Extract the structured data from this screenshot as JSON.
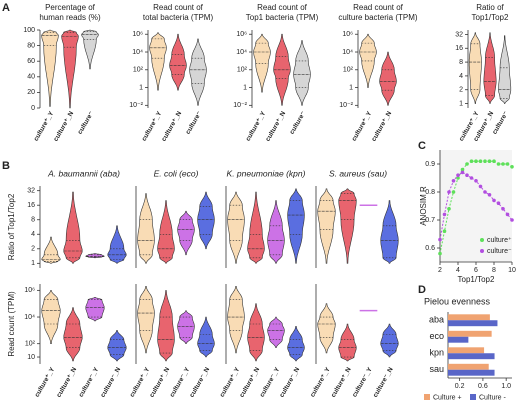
{
  "chart_data": [
    {
      "type": "violin",
      "panel": "A",
      "title": [
        "Percentage of",
        "human reads (%)"
      ],
      "categories": [
        "culture⁺_Y",
        "culture⁺_N",
        "culture⁻"
      ],
      "colors": [
        "#f9dcb5",
        "#e8646e",
        "#d6d6d6"
      ],
      "log": false,
      "ylim": [
        0,
        100
      ],
      "yticks": [
        0,
        20,
        40,
        60,
        80,
        100
      ],
      "min": [
        2,
        0,
        50
      ],
      "q1": [
        80,
        78,
        88
      ],
      "median": [
        93,
        92,
        94
      ],
      "q3": [
        97,
        97,
        98
      ],
      "max": [
        100,
        100,
        100
      ]
    },
    {
      "type": "violin",
      "title": [
        "Read count of",
        "total bacteria (TPM)"
      ],
      "categories": [
        "culture⁺_Y",
        "culture⁺_N",
        "culture⁻"
      ],
      "colors": [
        "#f9dcb5",
        "#e8646e",
        "#d6d6d6"
      ],
      "log": true,
      "ylim": [
        0.005,
        3000000
      ],
      "yticks": [
        {
          "value": 0.01,
          "label": "10⁻²"
        },
        1,
        {
          "value": 100,
          "label": "10²"
        },
        {
          "value": 10000,
          "label": "10⁴"
        },
        {
          "value": 1000000,
          "label": "10⁶"
        }
      ],
      "min": [
        0.5,
        0.5,
        0.01
      ],
      "q1": [
        2000,
        30,
        3
      ],
      "median": [
        30000,
        300,
        100
      ],
      "q3": [
        300000,
        5000,
        2000
      ],
      "max": [
        1500000,
        1000000,
        300000
      ]
    },
    {
      "type": "violin",
      "title": [
        "Read count of",
        "Top1 bacteria (TPM)"
      ],
      "categories": [
        "culture⁺_Y",
        "culture⁺_N",
        "culture⁻"
      ],
      "colors": [
        "#f9dcb5",
        "#e8646e",
        "#d6d6d6"
      ],
      "log": true,
      "ylim": [
        0.005,
        3000000
      ],
      "yticks": [
        {
          "value": 0.01,
          "label": "10⁻²"
        },
        1,
        {
          "value": 100,
          "label": "10²"
        },
        {
          "value": 10000,
          "label": "10⁴"
        },
        {
          "value": 1000000,
          "label": "10⁶"
        }
      ],
      "min": [
        0.3,
        0.01,
        0.01
      ],
      "q1": [
        500,
        10,
        1
      ],
      "median": [
        10000,
        100,
        30
      ],
      "q3": [
        100000,
        3000,
        1000
      ],
      "max": [
        1000000,
        1000000,
        200000
      ]
    },
    {
      "type": "violin",
      "title": [
        "Read count of",
        "culture bacteria (TPM)"
      ],
      "categories": [
        "culture⁺_Y",
        "culture⁺_N"
      ],
      "colors": [
        "#f9dcb5",
        "#e8646e"
      ],
      "log": true,
      "ylim": [
        0.005,
        3000000
      ],
      "yticks": [
        {
          "value": 0.01,
          "label": "10⁻²"
        },
        1,
        {
          "value": 100,
          "label": "10²"
        },
        {
          "value": 10000,
          "label": "10⁴"
        },
        {
          "value": 1000000,
          "label": "10⁶"
        }
      ],
      "min": [
        1,
        0.01
      ],
      "q1": [
        1000,
        0.5
      ],
      "median": [
        10000,
        5
      ],
      "q3": [
        100000,
        100
      ],
      "max": [
        1000000,
        10000
      ]
    },
    {
      "type": "violin",
      "title": [
        "Ratio of",
        "Top1/Top2"
      ],
      "categories": [
        "culture⁺_Y",
        "culture⁺_N",
        "culture⁻"
      ],
      "colors": [
        "#f9dcb5",
        "#e8646e",
        "#d6d6d6"
      ],
      "log": true,
      "ylim": [
        0.8,
        40
      ],
      "yticks": [
        1,
        2,
        4,
        8,
        16,
        32
      ],
      "min": [
        1,
        1,
        1
      ],
      "q1": [
        2,
        1.5,
        1.3
      ],
      "median": [
        8,
        3,
        2
      ],
      "q3": [
        20,
        10,
        6
      ],
      "max": [
        35,
        35,
        30
      ]
    },
    {
      "type": "violin-grid",
      "panel": "B",
      "title": "A. baumannii (aba)",
      "categories": [
        "culture⁺_Y",
        "culture⁺_N",
        "culture⁻_Y",
        "culture⁻_N"
      ],
      "colors": [
        "#f9dcb5",
        "#e8646e",
        "#cc72e6",
        "#5a6ee0"
      ],
      "rows": [
        {
          "ylabel": "Ratio of Top1/Top2",
          "log": true,
          "ylim": [
            0.8,
            40
          ],
          "yticks": [
            1,
            2,
            4,
            8,
            16,
            32
          ],
          "min": [
            1,
            1,
            1.3,
            1
          ],
          "q1": [
            1.1,
            1.3,
            1.35,
            1.2
          ],
          "median": [
            1.2,
            1.8,
            1.4,
            1.5
          ],
          "q3": [
            1.5,
            3,
            1.5,
            2
          ],
          "max": [
            3.5,
            30,
            1.6,
            6
          ]
        },
        {
          "ylabel": "Read count (TPM)",
          "log": true,
          "ylim": [
            3,
            3000000
          ],
          "yticks": [
            10,
            {
              "value": 100,
              "label": "10²"
            },
            {
              "value": 10000,
              "label": "10⁴"
            },
            {
              "value": 1000000,
              "label": "10⁶"
            }
          ],
          "min": [
            100,
            5,
            5000,
            5
          ],
          "q1": [
            3000,
            50,
            10000,
            15
          ],
          "median": [
            30000,
            300,
            50000,
            50
          ],
          "q3": [
            200000,
            3000,
            200000,
            200
          ],
          "max": [
            1000000,
            50000,
            300000,
            1000
          ]
        }
      ]
    },
    {
      "type": "violin-grid",
      "title": "E. coli (eco)",
      "categories": [
        "culture⁺_Y",
        "culture⁺_N",
        "culture⁻_Y",
        "culture⁻_N"
      ],
      "colors": [
        "#f9dcb5",
        "#e8646e",
        "#cc72e6",
        "#5a6ee0"
      ],
      "rows": [
        {
          "log": true,
          "ylim": [
            0.8,
            40
          ],
          "min": [
            1,
            1,
            1.5,
            2
          ],
          "q1": [
            1.5,
            1.3,
            3,
            4
          ],
          "median": [
            3,
            2,
            5,
            8
          ],
          "q3": [
            8,
            4,
            8,
            15
          ],
          "max": [
            28,
            20,
            12,
            30
          ]
        },
        {
          "log": true,
          "ylim": [
            3,
            3000000
          ],
          "min": [
            20,
            5,
            100,
            10
          ],
          "q1": [
            1000,
            20,
            300,
            30
          ],
          "median": [
            20000,
            200,
            2000,
            100
          ],
          "q3": [
            200000,
            10000,
            10000,
            500
          ],
          "max": [
            2000000,
            1000000,
            30000,
            10000
          ]
        }
      ]
    },
    {
      "type": "violin-grid",
      "title": "K. pneumoniae (kpn)",
      "categories": [
        "culture⁺_Y",
        "culture⁺_N",
        "culture⁻_Y",
        "culture⁻_N"
      ],
      "colors": [
        "#f9dcb5",
        "#e8646e",
        "#cc72e6",
        "#5a6ee0"
      ],
      "rows": [
        {
          "log": true,
          "ylim": [
            0.8,
            40
          ],
          "min": [
            1,
            1,
            1,
            1
          ],
          "q1": [
            3,
            1.3,
            1.5,
            4
          ],
          "median": [
            8,
            2,
            3,
            10
          ],
          "q3": [
            16,
            4,
            6,
            20
          ],
          "max": [
            30,
            30,
            20,
            35
          ]
        },
        {
          "log": true,
          "ylim": [
            3,
            3000000
          ],
          "min": [
            20,
            5,
            50,
            5
          ],
          "q1": [
            1000,
            30,
            200,
            15
          ],
          "median": [
            10000,
            300,
            1000,
            50
          ],
          "q3": [
            200000,
            3000,
            3000,
            200
          ],
          "max": [
            2000000,
            100000,
            10000,
            2000
          ]
        }
      ]
    },
    {
      "type": "violin-grid",
      "title": "S. aureus (sau)",
      "categories": [
        "culture⁺_Y",
        "culture⁺_N",
        "culture⁻_Y",
        "culture⁻_N"
      ],
      "colors": [
        "#f9dcb5",
        "#e8646e",
        "#cc72e6",
        "#5a6ee0"
      ],
      "rows": [
        {
          "log": true,
          "ylim": [
            0.8,
            40
          ],
          "min": [
            1,
            1,
            16,
            1
          ],
          "q1": [
            5,
            8,
            16,
            1.3
          ],
          "median": [
            12,
            20,
            16,
            3
          ],
          "q3": [
            20,
            28,
            16,
            6
          ],
          "max": [
            35,
            35,
            16,
            20
          ]
        },
        {
          "log": true,
          "ylim": [
            3,
            3000000
          ],
          "min": [
            20,
            5,
            30000,
            10
          ],
          "q1": [
            300,
            10,
            30000,
            30
          ],
          "median": [
            3000,
            50,
            30000,
            100
          ],
          "q3": [
            10000,
            200,
            30000,
            500
          ],
          "max": [
            100000,
            3000,
            30000,
            3000
          ]
        }
      ]
    },
    {
      "type": "line",
      "panel": "C",
      "xlabel": "Top1/Top2",
      "ylabel": "ANOSIM R",
      "x": [
        2,
        2.5,
        3,
        3.5,
        4,
        4.5,
        5,
        5.5,
        6,
        6.5,
        7,
        7.5,
        8,
        8.5,
        9,
        9.5,
        10
      ],
      "xlim": [
        2,
        10
      ],
      "xticks": [
        2,
        4,
        6,
        8,
        10
      ],
      "ylim": [
        0.55,
        0.95
      ],
      "yticks": [
        0.6,
        0.7,
        0.8,
        0.9
      ],
      "series": [
        {
          "name": "culture⁺",
          "color": "#5ee05a",
          "values": [
            0.58,
            0.66,
            0.74,
            0.8,
            0.85,
            0.88,
            0.9,
            0.91,
            0.91,
            0.91,
            0.91,
            0.91,
            0.91,
            0.9,
            0.9,
            0.9,
            0.89
          ]
        },
        {
          "name": "culture⁻",
          "color": "#b24ee0",
          "values": [
            0.63,
            0.72,
            0.8,
            0.84,
            0.86,
            0.87,
            0.86,
            0.85,
            0.84,
            0.82,
            0.8,
            0.79,
            0.77,
            0.76,
            0.74,
            0.72,
            0.7
          ]
        }
      ]
    },
    {
      "type": "bar",
      "panel": "D",
      "title": "Pielou evenness",
      "horizontal": true,
      "categories": [
        "aba",
        "eco",
        "kpn",
        "sau"
      ],
      "xlim": [
        0,
        1.1
      ],
      "xticks": [
        0.2,
        0.6,
        {
          "value": 1,
          "label": "1.0"
        }
      ],
      "series": [
        {
          "name": "Culture +",
          "color": "#f0a371",
          "values": [
            0.72,
            0.75,
            0.62,
            0.7
          ]
        },
        {
          "name": "Culture -",
          "color": "#5966c8",
          "values": [
            0.85,
            0.35,
            0.8,
            0.8
          ]
        }
      ]
    }
  ]
}
